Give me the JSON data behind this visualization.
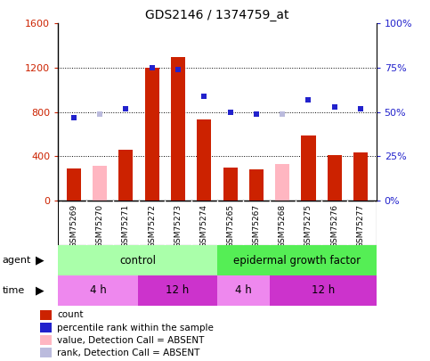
{
  "title": "GDS2146 / 1374759_at",
  "samples": [
    "GSM75269",
    "GSM75270",
    "GSM75271",
    "GSM75272",
    "GSM75273",
    "GSM75274",
    "GSM75265",
    "GSM75267",
    "GSM75268",
    "GSM75275",
    "GSM75276",
    "GSM75277"
  ],
  "bar_values": [
    290,
    0,
    460,
    1200,
    1300,
    730,
    300,
    280,
    0,
    590,
    410,
    430
  ],
  "bar_absent": [
    0,
    310,
    0,
    0,
    0,
    0,
    0,
    0,
    330,
    0,
    0,
    0
  ],
  "rank_values": [
    47,
    0,
    52,
    75,
    74,
    59,
    50,
    49,
    0,
    57,
    53,
    52
  ],
  "rank_absent": [
    0,
    49,
    0,
    0,
    0,
    0,
    0,
    0,
    49,
    0,
    0,
    0
  ],
  "ylim_left": [
    0,
    1600
  ],
  "ylim_right": [
    0,
    100
  ],
  "yticks_left": [
    0,
    400,
    800,
    1200,
    1600
  ],
  "ytick_labels_left": [
    "0",
    "400",
    "800",
    "1200",
    "1600"
  ],
  "yticks_right": [
    0,
    25,
    50,
    75,
    100
  ],
  "ytick_labels_right": [
    "0%",
    "25%",
    "50%",
    "75%",
    "100%"
  ],
  "bar_color": "#CC2200",
  "bar_absent_color": "#FFB6C1",
  "rank_color": "#2222CC",
  "rank_absent_color": "#BBBBDD",
  "agent_control_color": "#AAFFAA",
  "agent_egf_color": "#55EE55",
  "time_4h_color": "#EE88EE",
  "time_12h_color": "#CC33CC",
  "xlabel_bg": "#CCCCCC",
  "control_n": 6,
  "egf_n": 6,
  "total_n": 12,
  "time_4h_ctrl": 3,
  "time_12h_ctrl": 3,
  "time_4h_egf": 2,
  "time_12h_egf": 4,
  "legend_labels": [
    "count",
    "percentile rank within the sample",
    "value, Detection Call = ABSENT",
    "rank, Detection Call = ABSENT"
  ],
  "legend_colors": [
    "#CC2200",
    "#2222CC",
    "#FFB6C1",
    "#BBBBDD"
  ]
}
